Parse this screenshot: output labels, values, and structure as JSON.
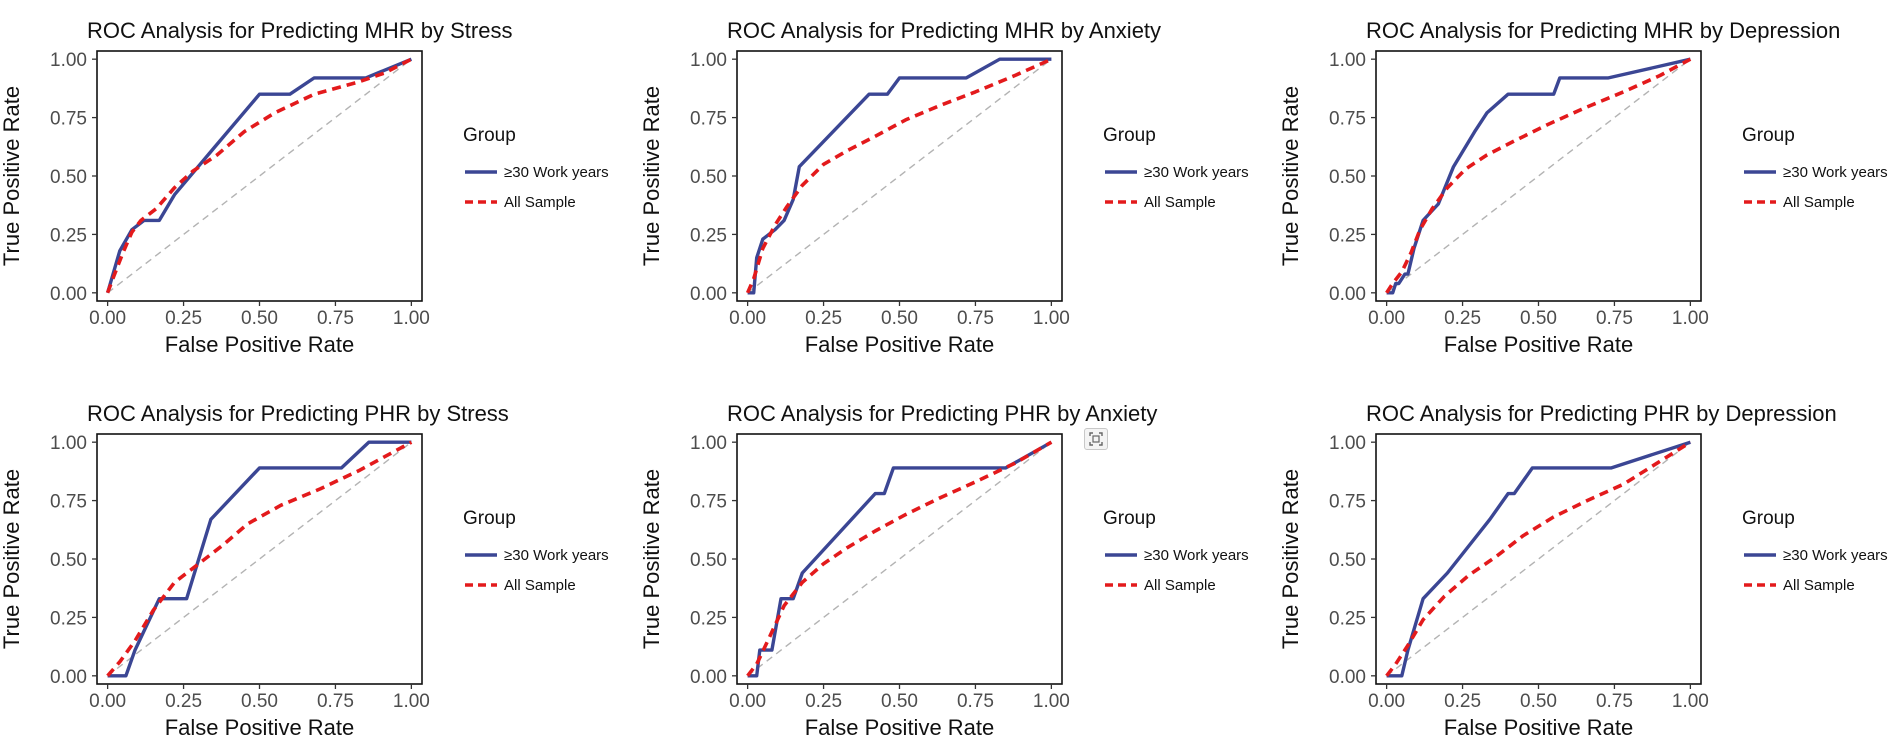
{
  "chart_data": [
    {
      "type": "line",
      "title": "ROC Analysis for Predicting MHR by Stress",
      "xlabel": "False Positive Rate",
      "ylabel": "True Positive Rate",
      "xlim": [
        0,
        1
      ],
      "ylim": [
        0,
        1
      ],
      "xticks": [
        "0.00",
        "0.25",
        "0.50",
        "0.75",
        "1.00"
      ],
      "yticks": [
        "0.00",
        "0.25",
        "0.50",
        "0.75",
        "1.00"
      ],
      "legend_title": "Group",
      "series": [
        {
          "name": "≥30 Work years",
          "color": "#3b4694",
          "dash": "solid",
          "x": [
            0,
            0.02,
            0.04,
            0.08,
            0.12,
            0.17,
            0.22,
            0.35,
            0.5,
            0.6,
            0.68,
            0.85,
            1.0
          ],
          "y": [
            0,
            0.09,
            0.18,
            0.27,
            0.31,
            0.31,
            0.42,
            0.62,
            0.85,
            0.85,
            0.92,
            0.92,
            1.0
          ]
        },
        {
          "name": "All Sample",
          "color": "#e31a1c",
          "dash": "dashed",
          "x": [
            0,
            0.02,
            0.05,
            0.08,
            0.11,
            0.16,
            0.22,
            0.28,
            0.36,
            0.45,
            0.55,
            0.68,
            0.82,
            0.91,
            1.0
          ],
          "y": [
            0,
            0.07,
            0.17,
            0.26,
            0.31,
            0.36,
            0.45,
            0.52,
            0.59,
            0.69,
            0.77,
            0.85,
            0.9,
            0.94,
            1.0
          ]
        }
      ]
    },
    {
      "type": "line",
      "title": "ROC Analysis for Predicting MHR by Anxiety",
      "xlabel": "False Positive Rate",
      "ylabel": "True Positive Rate",
      "xlim": [
        0,
        1
      ],
      "ylim": [
        0,
        1
      ],
      "xticks": [
        "0.00",
        "0.25",
        "0.50",
        "0.75",
        "1.00"
      ],
      "yticks": [
        "0.00",
        "0.25",
        "0.50",
        "0.75",
        "1.00"
      ],
      "legend_title": "Group",
      "series": [
        {
          "name": "≥30 Work years",
          "color": "#3b4694",
          "dash": "solid",
          "x": [
            0,
            0.02,
            0.03,
            0.05,
            0.09,
            0.12,
            0.15,
            0.17,
            0.4,
            0.46,
            0.5,
            0.72,
            0.83,
            1.0
          ],
          "y": [
            0,
            0,
            0.15,
            0.23,
            0.27,
            0.31,
            0.4,
            0.54,
            0.85,
            0.85,
            0.92,
            0.92,
            1.0,
            1.0
          ]
        },
        {
          "name": "All Sample",
          "color": "#e31a1c",
          "dash": "dashed",
          "x": [
            0,
            0.02,
            0.05,
            0.09,
            0.13,
            0.18,
            0.25,
            0.33,
            0.42,
            0.52,
            0.63,
            0.75,
            0.88,
            1.0
          ],
          "y": [
            0,
            0.06,
            0.19,
            0.29,
            0.37,
            0.46,
            0.55,
            0.61,
            0.67,
            0.74,
            0.8,
            0.86,
            0.93,
            1.0
          ]
        }
      ]
    },
    {
      "type": "line",
      "title": "ROC Analysis for Predicting MHR by Depression",
      "xlabel": "False Positive Rate",
      "ylabel": "True Positive Rate",
      "xlim": [
        0,
        1
      ],
      "ylim": [
        0,
        1
      ],
      "xticks": [
        "0.00",
        "0.25",
        "0.50",
        "0.75",
        "1.00"
      ],
      "yticks": [
        "0.00",
        "0.25",
        "0.50",
        "0.75",
        "1.00"
      ],
      "legend_title": "Group",
      "series": [
        {
          "name": "≥30 Work years",
          "color": "#3b4694",
          "dash": "solid",
          "x": [
            0,
            0.02,
            0.03,
            0.04,
            0.06,
            0.07,
            0.09,
            0.12,
            0.17,
            0.22,
            0.29,
            0.33,
            0.4,
            0.55,
            0.57,
            0.73,
            1.0
          ],
          "y": [
            0,
            0,
            0.04,
            0.04,
            0.08,
            0.08,
            0.19,
            0.31,
            0.38,
            0.54,
            0.69,
            0.77,
            0.85,
            0.85,
            0.92,
            0.92,
            1.0
          ]
        },
        {
          "name": "All Sample",
          "color": "#e31a1c",
          "dash": "dashed",
          "x": [
            0,
            0.02,
            0.05,
            0.08,
            0.11,
            0.15,
            0.2,
            0.26,
            0.33,
            0.42,
            0.53,
            0.65,
            0.78,
            0.9,
            1.0
          ],
          "y": [
            0,
            0.04,
            0.09,
            0.17,
            0.27,
            0.36,
            0.45,
            0.53,
            0.59,
            0.65,
            0.72,
            0.79,
            0.86,
            0.93,
            1.0
          ]
        }
      ]
    },
    {
      "type": "line",
      "title": "ROC Analysis for Predicting PHR by Stress",
      "xlabel": "False Positive Rate",
      "ylabel": "True Positive Rate",
      "xlim": [
        0,
        1
      ],
      "ylim": [
        0,
        1
      ],
      "xticks": [
        "0.00",
        "0.25",
        "0.50",
        "0.75",
        "1.00"
      ],
      "yticks": [
        "0.00",
        "0.25",
        "0.50",
        "0.75",
        "1.00"
      ],
      "legend_title": "Group",
      "series": [
        {
          "name": "≥30 Work years",
          "color": "#3b4694",
          "dash": "solid",
          "x": [
            0,
            0.01,
            0.06,
            0.09,
            0.17,
            0.26,
            0.34,
            0.5,
            0.77,
            0.86,
            1.0
          ],
          "y": [
            0,
            0,
            0,
            0.11,
            0.33,
            0.33,
            0.67,
            0.89,
            0.89,
            1.0,
            1.0
          ]
        },
        {
          "name": "All Sample",
          "color": "#e31a1c",
          "dash": "dashed",
          "x": [
            0,
            0.04,
            0.09,
            0.15,
            0.22,
            0.3,
            0.38,
            0.46,
            0.57,
            0.7,
            0.83,
            1.0
          ],
          "y": [
            0,
            0.06,
            0.15,
            0.28,
            0.4,
            0.48,
            0.56,
            0.65,
            0.73,
            0.8,
            0.88,
            1.0
          ]
        }
      ]
    },
    {
      "type": "line",
      "title": "ROC Analysis for Predicting PHR by Anxiety",
      "xlabel": "False Positive Rate",
      "ylabel": "True Positive Rate",
      "xlim": [
        0,
        1
      ],
      "ylim": [
        0,
        1
      ],
      "xticks": [
        "0.00",
        "0.25",
        "0.50",
        "0.75",
        "1.00"
      ],
      "yticks": [
        "0.00",
        "0.25",
        "0.50",
        "0.75",
        "1.00"
      ],
      "legend_title": "Group",
      "series": [
        {
          "name": "≥30 Work years",
          "color": "#3b4694",
          "dash": "solid",
          "x": [
            0,
            0.03,
            0.04,
            0.08,
            0.11,
            0.15,
            0.18,
            0.42,
            0.45,
            0.48,
            0.85,
            1.0
          ],
          "y": [
            0,
            0,
            0.11,
            0.11,
            0.33,
            0.33,
            0.44,
            0.78,
            0.78,
            0.89,
            0.89,
            1.0
          ]
        },
        {
          "name": "All Sample",
          "color": "#e31a1c",
          "dash": "dashed",
          "x": [
            0,
            0.03,
            0.07,
            0.12,
            0.18,
            0.25,
            0.33,
            0.42,
            0.52,
            0.63,
            0.75,
            0.88,
            1.0
          ],
          "y": [
            0,
            0.05,
            0.16,
            0.3,
            0.4,
            0.48,
            0.55,
            0.62,
            0.69,
            0.76,
            0.83,
            0.91,
            1.0
          ]
        }
      ]
    },
    {
      "type": "line",
      "title": "ROC Analysis for Predicting PHR by Depression",
      "xlabel": "False Positive Rate",
      "ylabel": "True Positive Rate",
      "xlim": [
        0,
        1
      ],
      "ylim": [
        0,
        1
      ],
      "xticks": [
        "0.00",
        "0.25",
        "0.50",
        "0.75",
        "1.00"
      ],
      "yticks": [
        "0.00",
        "0.25",
        "0.50",
        "0.75",
        "1.00"
      ],
      "legend_title": "Group",
      "series": [
        {
          "name": "≥30 Work years",
          "color": "#3b4694",
          "dash": "solid",
          "x": [
            0,
            0.05,
            0.07,
            0.12,
            0.2,
            0.34,
            0.4,
            0.42,
            0.48,
            0.74,
            1.0
          ],
          "y": [
            0,
            0,
            0.11,
            0.33,
            0.44,
            0.67,
            0.78,
            0.78,
            0.89,
            0.89,
            1.0
          ]
        },
        {
          "name": "All Sample",
          "color": "#e31a1c",
          "dash": "dashed",
          "x": [
            0,
            0.03,
            0.07,
            0.12,
            0.19,
            0.27,
            0.36,
            0.45,
            0.55,
            0.66,
            0.78,
            0.89,
            1.0
          ],
          "y": [
            0,
            0.05,
            0.13,
            0.24,
            0.34,
            0.43,
            0.51,
            0.6,
            0.68,
            0.75,
            0.82,
            0.91,
            1.0
          ]
        }
      ]
    }
  ]
}
